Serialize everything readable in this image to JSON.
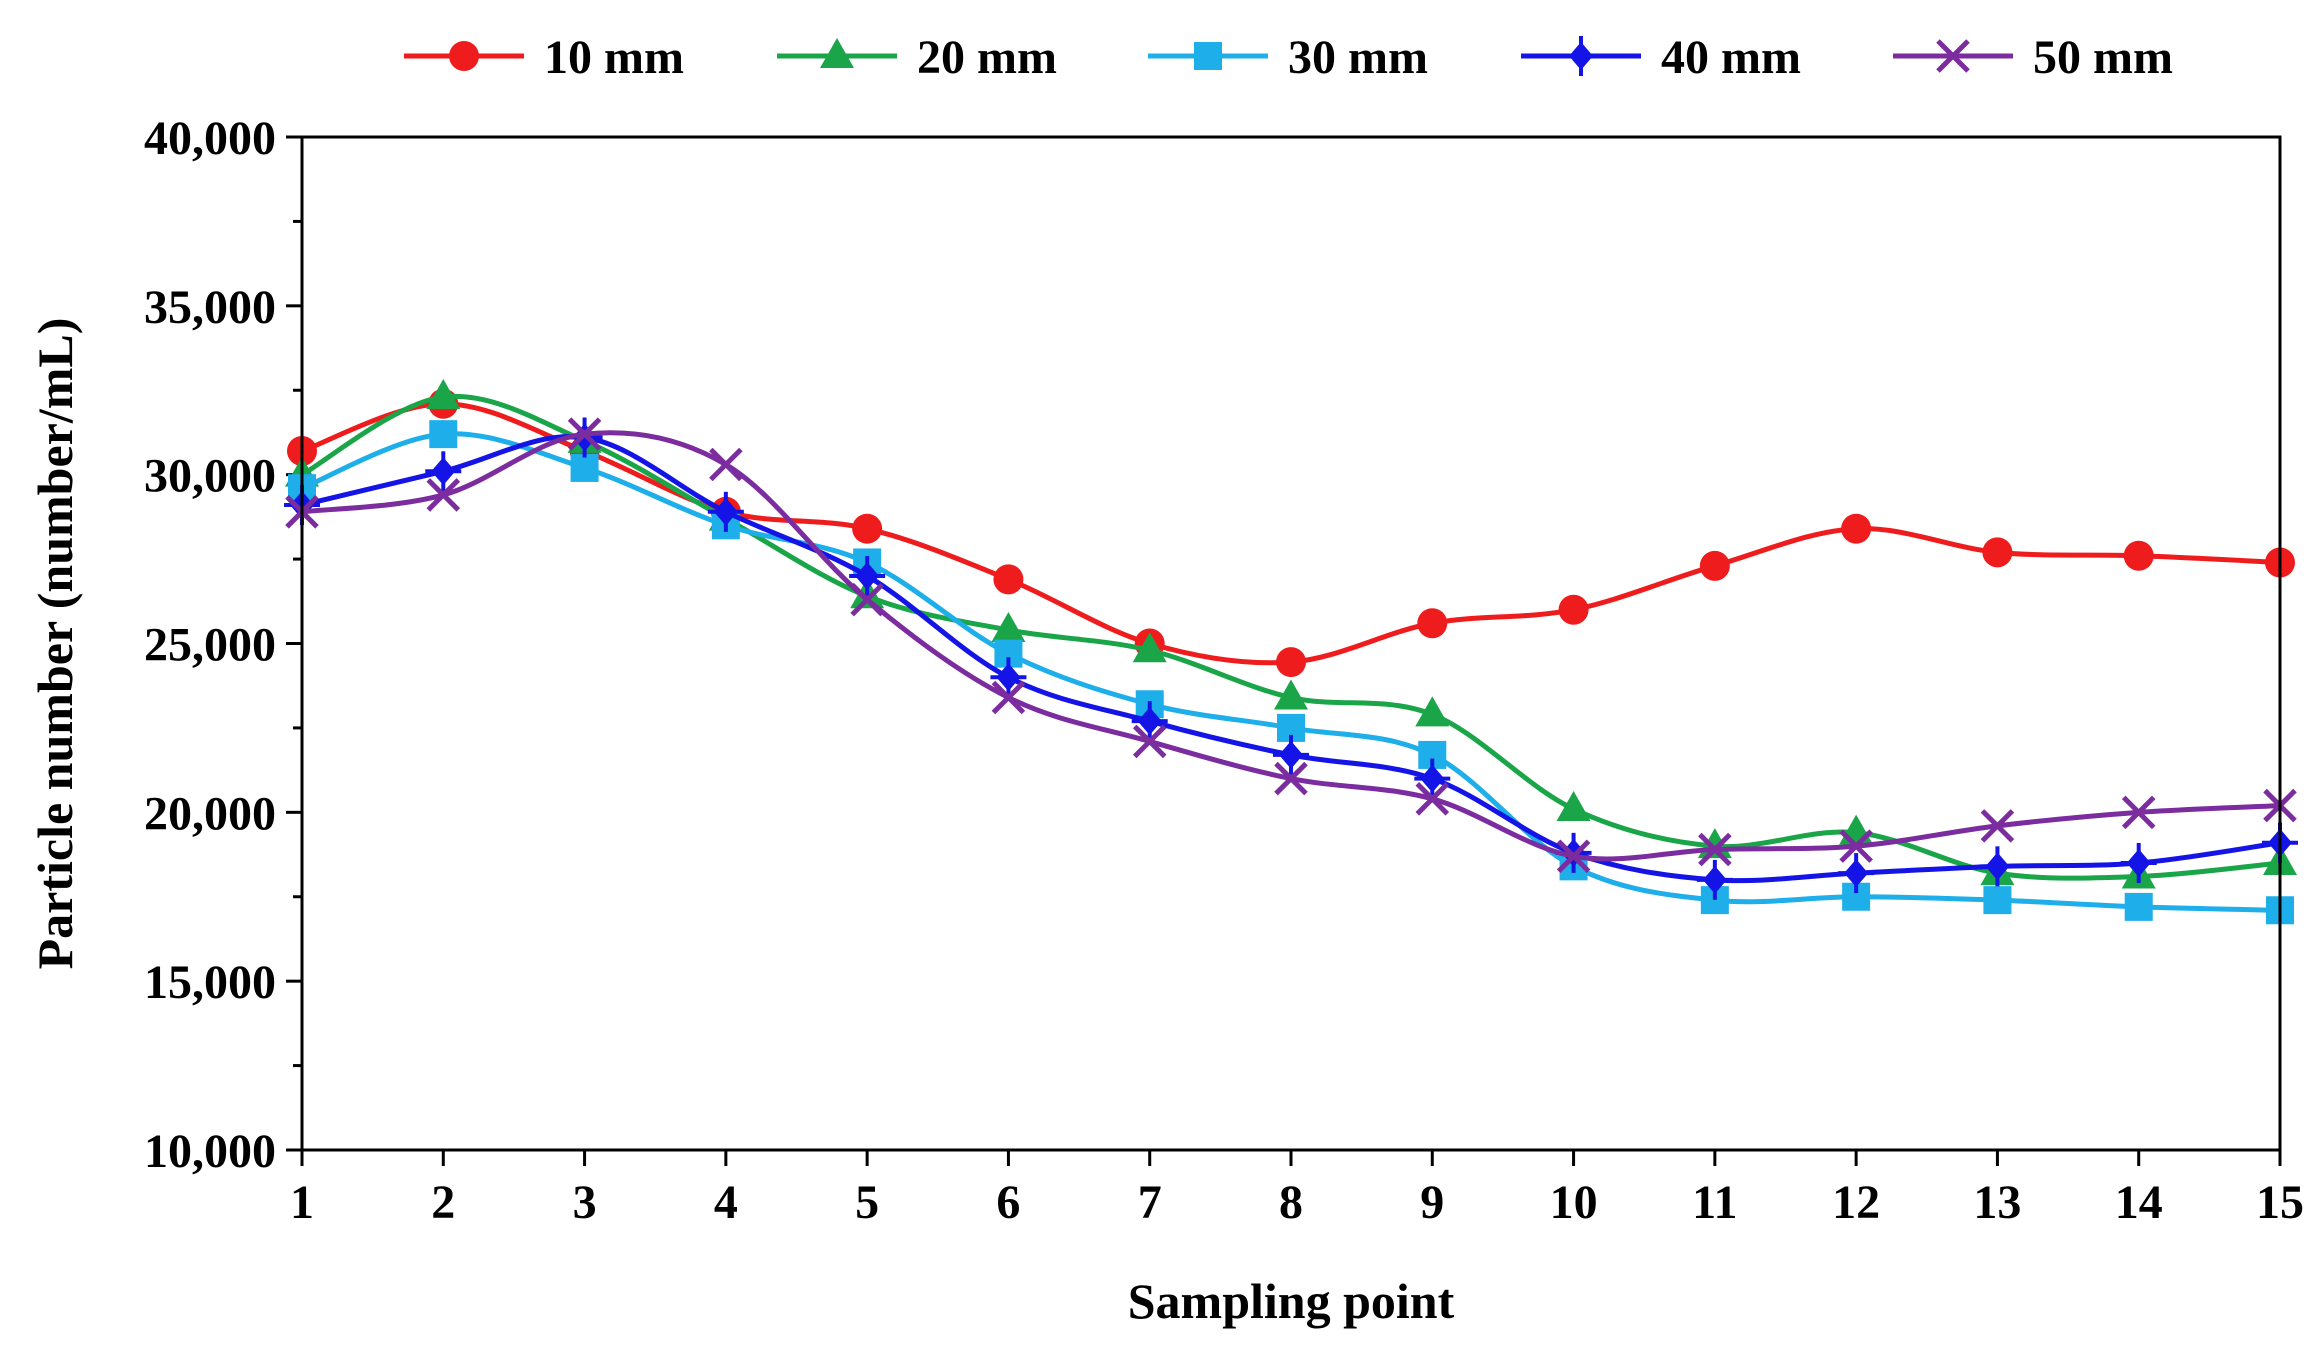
{
  "chart_data": {
    "type": "line",
    "title": "",
    "xlabel": "Sampling point",
    "ylabel": "Particle number (number/mL)",
    "categories": [
      "1",
      "2",
      "3",
      "4",
      "5",
      "6",
      "7",
      "8",
      "9",
      "10",
      "11",
      "12",
      "13",
      "14",
      "15"
    ],
    "x": [
      1,
      2,
      3,
      4,
      5,
      6,
      7,
      8,
      9,
      10,
      11,
      12,
      13,
      14,
      15
    ],
    "xlim": [
      1,
      15
    ],
    "ylim": [
      10000,
      40000
    ],
    "yticks": [
      10000,
      15000,
      20000,
      25000,
      30000,
      35000,
      40000
    ],
    "ytick_labels": [
      "10,000",
      "15,000",
      "20,000",
      "25,000",
      "30,000",
      "35,000",
      "40,000"
    ],
    "grid": false,
    "legend_position": "top",
    "smooth": true,
    "series": [
      {
        "name": "10 mm",
        "color": "#ee1c1c",
        "marker": "circle",
        "values": [
          30700,
          32100,
          30700,
          28900,
          28400,
          26900,
          25000,
          24450,
          25600,
          26000,
          27300,
          28400,
          27700,
          27600,
          27400
        ]
      },
      {
        "name": "20 mm",
        "color": "#1aa549",
        "marker": "triangle",
        "values": [
          30000,
          32300,
          31000,
          28700,
          26400,
          25400,
          24800,
          23400,
          22900,
          20100,
          19000,
          19400,
          18200,
          18100,
          18500
        ]
      },
      {
        "name": "30 mm",
        "color": "#1eaee9",
        "marker": "square",
        "values": [
          29600,
          31200,
          30200,
          28500,
          27400,
          24700,
          23200,
          22500,
          21700,
          18400,
          17400,
          17500,
          17400,
          17200,
          17100
        ]
      },
      {
        "name": "40 mm",
        "color": "#1414e6",
        "marker": "diamond-cross",
        "values": [
          29100,
          30100,
          31100,
          28900,
          27000,
          24000,
          22700,
          21700,
          21000,
          18800,
          18000,
          18200,
          18400,
          18500,
          19100
        ]
      },
      {
        "name": "50 mm",
        "color": "#7b2c9e",
        "marker": "x",
        "values": [
          28900,
          29400,
          31200,
          30300,
          26300,
          23400,
          22100,
          21000,
          20400,
          18700,
          18900,
          19000,
          19600,
          20000,
          20200
        ]
      }
    ]
  }
}
